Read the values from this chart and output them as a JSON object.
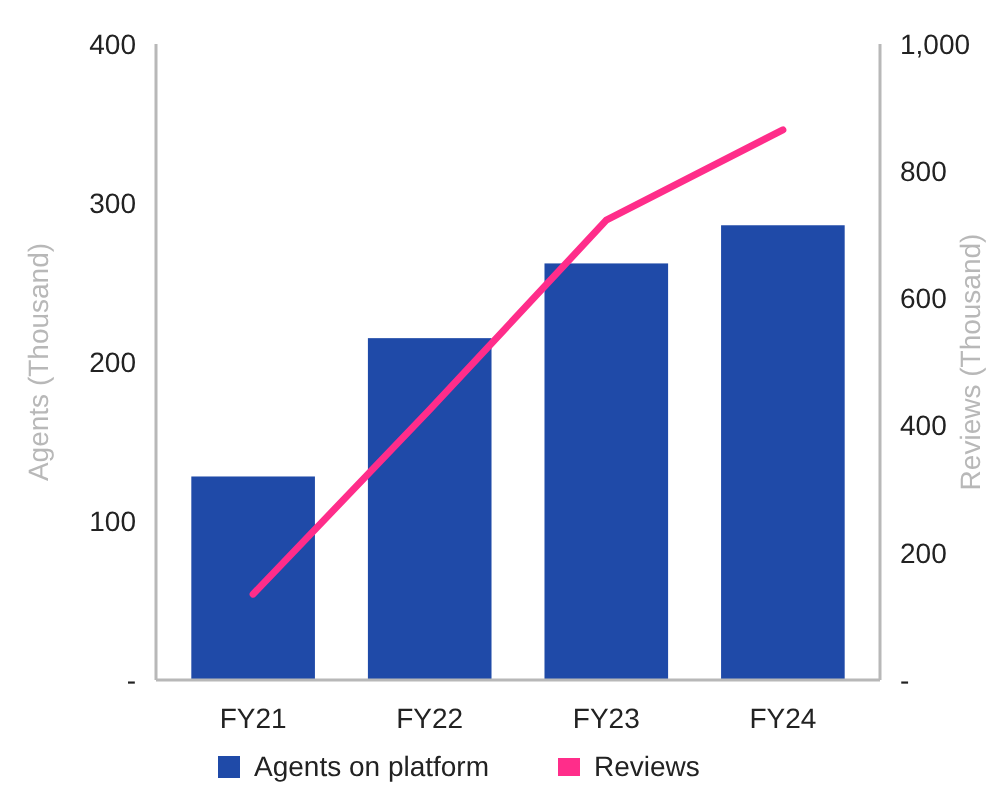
{
  "chart_data": {
    "type": "bar",
    "categories": [
      "FY21",
      "FY22",
      "FY23",
      "FY24"
    ],
    "ylabel": "Agents (Thousand)",
    "y2label": "Reviews (Thousand)",
    "ylim": [
      0,
      400
    ],
    "yticks": [
      {
        "value": 0,
        "label": "-"
      },
      100,
      200,
      300,
      400
    ],
    "y2lim": [
      0,
      1000
    ],
    "y2ticks": [
      {
        "value": 0,
        "label": "-"
      },
      200,
      400,
      600,
      800,
      {
        "value": 1000,
        "label": "1,000"
      }
    ],
    "series": [
      {
        "name": "Agents on platform",
        "color": "#1f4aa8",
        "values": [
          128,
          215,
          262,
          286
        ]
      },
      {
        "name": "Reviews",
        "type": "line",
        "axis": "y2",
        "color": "#ff2d8a",
        "values": [
          135,
          425,
          723,
          865
        ]
      }
    ],
    "legend": "bottom",
    "marker": "none"
  }
}
